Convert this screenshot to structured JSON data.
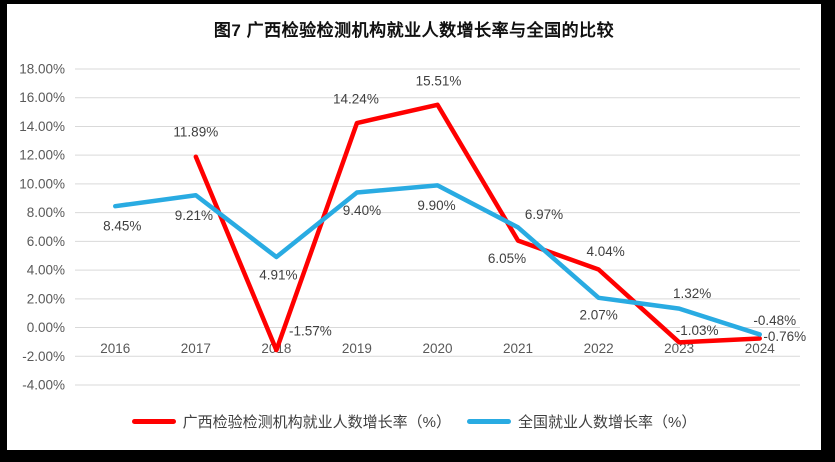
{
  "chart_data": {
    "type": "line",
    "title": "图7 广西检验检测机构就业人数增长率与全国的比较",
    "categories": [
      "2016",
      "2017",
      "2018",
      "2019",
      "2020",
      "2021",
      "2022",
      "2023",
      "2024"
    ],
    "series": [
      {
        "name": "广西检验检测机构就业人数增长率（%）",
        "color": "#FF0000",
        "values": [
          null,
          11.89,
          -1.57,
          14.24,
          15.51,
          6.05,
          4.04,
          -1.03,
          -0.76
        ],
        "data_labels": [
          "",
          "11.89%",
          "-1.57%",
          "14.24%",
          "15.51%",
          "6.05%",
          "4.04%",
          "-1.03%",
          "-0.76%"
        ],
        "label_offsets": [
          [
            0,
            0
          ],
          [
            0,
            -25
          ],
          [
            34,
            -19
          ],
          [
            -1,
            -24
          ],
          [
            1,
            -24
          ],
          [
            -11,
            18
          ],
          [
            7,
            -18
          ],
          [
            18,
            -12
          ],
          [
            25,
            -2
          ]
        ]
      },
      {
        "name": "全国就业人数增长率（%）",
        "color": "#29ABE2",
        "values": [
          8.45,
          9.21,
          4.91,
          9.4,
          9.9,
          6.97,
          2.07,
          1.32,
          -0.48
        ],
        "data_labels": [
          "8.45%",
          "9.21%",
          "4.91%",
          "9.40%",
          "9.90%",
          "6.97%",
          "2.07%",
          "1.32%",
          "-0.48%"
        ],
        "label_offsets": [
          [
            7,
            20
          ],
          [
            -2,
            20
          ],
          [
            2,
            18
          ],
          [
            5,
            18
          ],
          [
            -1,
            20
          ],
          [
            26,
            -13
          ],
          [
            0,
            17
          ],
          [
            13,
            -15
          ],
          [
            15,
            -14
          ]
        ]
      }
    ],
    "y_axis": {
      "min": -4,
      "max": 18,
      "step": 2,
      "tick_labels": [
        "18.00%",
        "16.00%",
        "14.00%",
        "12.00%",
        "10.00%",
        "8.00%",
        "6.00%",
        "4.00%",
        "2.00%",
        "0.00%",
        "-2.00%",
        "-4.00%"
      ]
    },
    "grid": "horizontal",
    "legend_position": "bottom",
    "colors": {
      "gridline": "#D9D9D9",
      "axis_text": "#595959",
      "data_label_text": "#3F3F3F",
      "title_text": "#111111"
    }
  }
}
